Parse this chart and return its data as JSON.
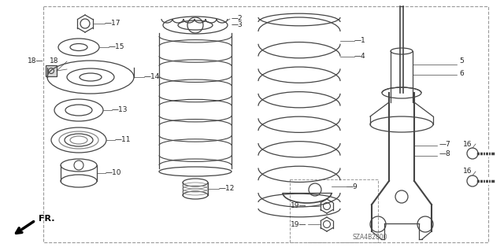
{
  "bg_color": "#ffffff",
  "border_color": "#999999",
  "line_color": "#444444",
  "label_color": "#222222",
  "diagram_code": "SZA4B2800"
}
